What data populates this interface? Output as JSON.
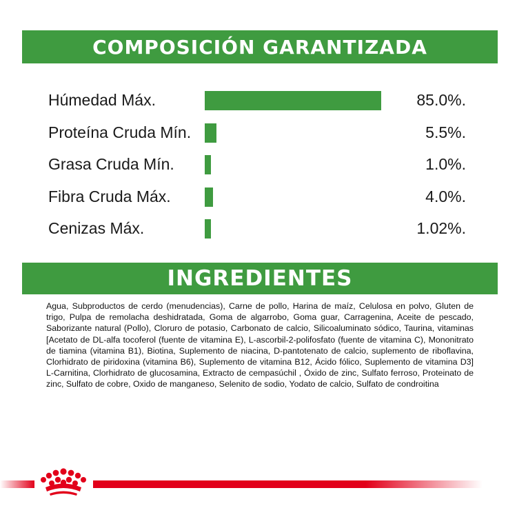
{
  "composition": {
    "title": "COMPOSICIÓN GARANTIZADA",
    "rows": [
      {
        "label": "Húmedad Máx.",
        "value": "85.0%.",
        "amount": 85.0
      },
      {
        "label": "Proteína Cruda Mín.",
        "value": "5.5%.",
        "amount": 5.5
      },
      {
        "label": "Grasa Cruda Mín.",
        "value": "1.0%.",
        "amount": 1.0
      },
      {
        "label": "Fibra Cruda Máx.",
        "value": "4.0%.",
        "amount": 4.0
      },
      {
        "label": "Cenizas Máx.",
        "value": "1.02%.",
        "amount": 1.02
      }
    ]
  },
  "ingredients": {
    "title": "INGREDIENTES",
    "text": "Agua, Subproductos de cerdo (menudencias), Carne de pollo, Harina de maíz, Celulosa en polvo, Gluten de trigo, Pulpa de remolacha deshidratada, Goma de algarrobo, Goma guar, Carragenina, Aceite de pescado, Saborizante natural (Pollo), Cloruro de potasio, Carbonato de calcio, Silicoaluminato sódico, Taurina, vitaminas [Acetato de DL-alfa tocoferol (fuente de vitamina E), L-ascorbil-2-polifosfato (fuente de vitamina C), Mononitrato de tiamina (vitamina B1), Biotina, Suplemento de niacina, D-pantotenato de calcio, suplemento de riboflavina, Clorhidrato de piridoxina (vitamina B6), Suplemento de vitamina B12, Ácido fólico, Suplemento de vitamina D3] L-Carnitina, Clorhidrato de glucosamina, Extracto de cempasúchil , Óxido de zinc, Sulfato ferroso, Proteinato de zinc, Sulfato de cobre, Oxido de manganeso, Selenito de sodio, Yodato de calcio, Sulfato de condroitina"
  },
  "colors": {
    "banner_green": "#3f9b40",
    "bar_green": "#3f9b40",
    "brand_red": "#e2001a"
  },
  "footer": {
    "logo_icon": "royal-canin-crown-icon"
  }
}
